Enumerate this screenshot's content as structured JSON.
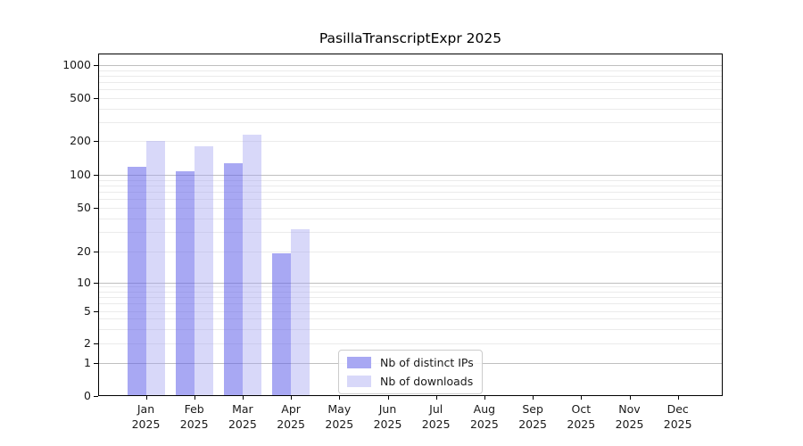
{
  "title": "PasillaTranscriptExpr 2025",
  "chart_data": {
    "type": "bar",
    "title": "PasillaTranscriptExpr 2025",
    "yscale": "symlog",
    "ylim": [
      0,
      1300
    ],
    "yticks": [
      0,
      1,
      2,
      5,
      10,
      20,
      50,
      100,
      200,
      500,
      1000
    ],
    "grid": {
      "horizontal": true,
      "vertical": false,
      "minor_log_lines": true
    },
    "legend_position": "inside-lower-center",
    "categories": [
      "Jan 2025",
      "Feb 2025",
      "Mar 2025",
      "Apr 2025",
      "May 2025",
      "Jun 2025",
      "Jul 2025",
      "Aug 2025",
      "Sep 2025",
      "Oct 2025",
      "Nov 2025",
      "Dec 2025"
    ],
    "series": [
      {
        "name": "Nb of distinct IPs",
        "color_hex": "#a8a8f3",
        "fill": "rgba(97,97,233,0.55)",
        "values": [
          118,
          108,
          126,
          19,
          0,
          0,
          0,
          0,
          0,
          0,
          0,
          0
        ]
      },
      {
        "name": "Nb of downloads",
        "color_hex": "#d8d8f9",
        "fill": "rgba(162,162,241,0.42)",
        "values": [
          202,
          179,
          230,
          32,
          0,
          0,
          0,
          0,
          0,
          0,
          0,
          0
        ]
      }
    ]
  },
  "colors": {
    "spine": "#000000",
    "text": "#1a1a1a",
    "grid_major": "#bfbfbf",
    "grid_minor": "#ebebeb",
    "legend_border": "#cccccc",
    "background": "#ffffff"
  }
}
